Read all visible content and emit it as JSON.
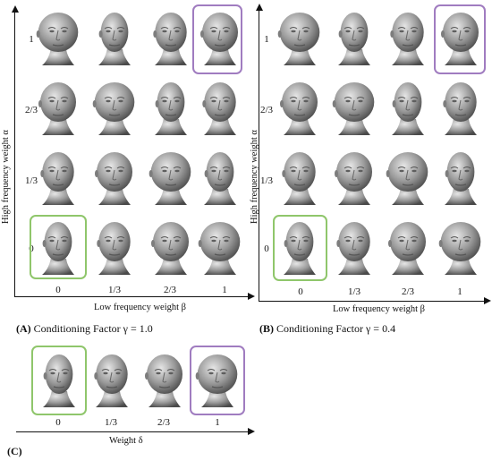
{
  "colors": {
    "highlight_green": "#8fc66b",
    "highlight_purple": "#a07cc0",
    "axis": "#111111",
    "head_fill": "#9a9a9a"
  },
  "panelA": {
    "caption_bold": "(A)",
    "caption_text": " Conditioning Factor γ = 1.0",
    "y_title": "High frequency weight α",
    "x_title": "Low frequency weight β",
    "row_labels": [
      "1",
      "2/3",
      "1/3",
      "0"
    ],
    "col_labels": [
      "0",
      "1/3",
      "2/3",
      "1"
    ]
  },
  "panelB": {
    "caption_bold": "(B)",
    "caption_text": " Conditioning Factor γ = 0.4",
    "y_title": "High frequency weight α",
    "x_title": "Low frequency weight β",
    "row_labels": [
      "1",
      "2/3",
      "1/3",
      "0"
    ],
    "col_labels": [
      "0",
      "1/3",
      "2/3",
      "1"
    ]
  },
  "panelC": {
    "caption_bold": "(C)",
    "x_title": "Weight δ",
    "col_labels": [
      "0",
      "1/3",
      "2/3",
      "1"
    ]
  },
  "icons": {
    "head": "head-render-icon"
  }
}
